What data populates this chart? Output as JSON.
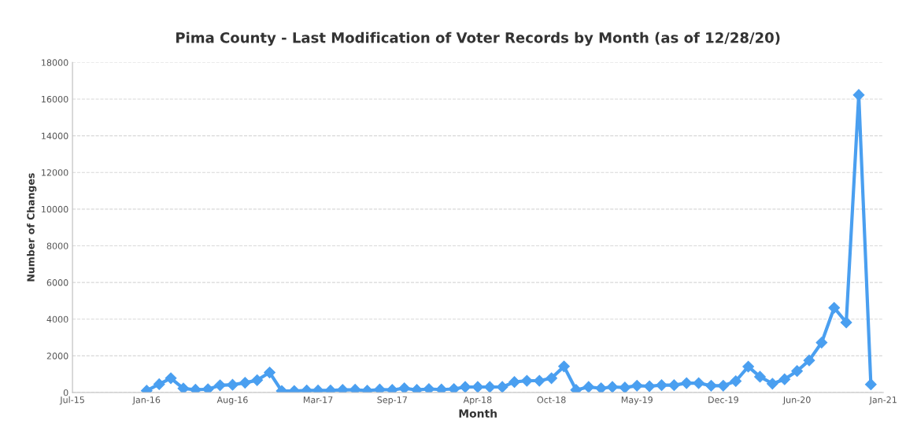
{
  "chart_data": {
    "type": "line",
    "title": "Pima County - Last Modification of Voter Records by Month (as of 12/28/20)",
    "xlabel": "Month",
    "ylabel": "Number of Changes",
    "x": [
      "2016-01",
      "2016-02",
      "2016-03",
      "2016-04",
      "2016-05",
      "2016-06",
      "2016-07",
      "2016-08",
      "2016-09",
      "2016-10",
      "2016-11",
      "2016-12",
      "2017-01",
      "2017-02",
      "2017-03",
      "2017-04",
      "2017-05",
      "2017-06",
      "2017-07",
      "2017-08",
      "2017-09",
      "2017-10",
      "2017-11",
      "2017-12",
      "2018-01",
      "2018-02",
      "2018-03",
      "2018-04",
      "2018-05",
      "2018-06",
      "2018-07",
      "2018-08",
      "2018-09",
      "2018-10",
      "2018-11",
      "2018-12",
      "2019-01",
      "2019-02",
      "2019-03",
      "2019-04",
      "2019-05",
      "2019-06",
      "2019-07",
      "2019-08",
      "2019-09",
      "2019-10",
      "2019-11",
      "2019-12",
      "2020-01",
      "2020-02",
      "2020-03",
      "2020-04",
      "2020-05",
      "2020-06",
      "2020-07",
      "2020-08",
      "2020-09",
      "2020-10",
      "2020-11",
      "2020-12"
    ],
    "series": [
      {
        "color": "#4a9ff0",
        "values": [
          100,
          450,
          780,
          220,
          150,
          180,
          390,
          420,
          530,
          670,
          1090,
          80,
          80,
          110,
          110,
          110,
          140,
          150,
          100,
          160,
          140,
          230,
          140,
          190,
          160,
          190,
          300,
          300,
          300,
          300,
          570,
          640,
          640,
          780,
          1420,
          140,
          300,
          230,
          300,
          270,
          370,
          340,
          400,
          400,
          510,
          510,
          370,
          370,
          620,
          1410,
          860,
          480,
          720,
          1170,
          1750,
          2720,
          4620,
          3820,
          16230,
          440
        ]
      }
    ],
    "xlim": [
      "2015-07",
      "2021-01"
    ],
    "xticks": [
      {
        "value": "2015-07",
        "label": "Jul-15"
      },
      {
        "value": "2016-01",
        "label": "Jan-16"
      },
      {
        "value": "2016-08",
        "label": "Aug-16"
      },
      {
        "value": "2017-03",
        "label": "Mar-17"
      },
      {
        "value": "2017-09",
        "label": "Sep-17"
      },
      {
        "value": "2018-04",
        "label": "Apr-18"
      },
      {
        "value": "2018-10",
        "label": "Oct-18"
      },
      {
        "value": "2019-05",
        "label": "May-19"
      },
      {
        "value": "2019-12",
        "label": "Dec-19"
      },
      {
        "value": "2020-06",
        "label": "Jun-20"
      },
      {
        "value": "2021-01",
        "label": "Jan-21"
      }
    ],
    "ylim": [
      0,
      18000
    ],
    "yticks": [
      0,
      2000,
      4000,
      6000,
      8000,
      10000,
      12000,
      14000,
      16000,
      18000
    ],
    "grid": "y",
    "marker": "diamond",
    "line_style": "solid"
  }
}
